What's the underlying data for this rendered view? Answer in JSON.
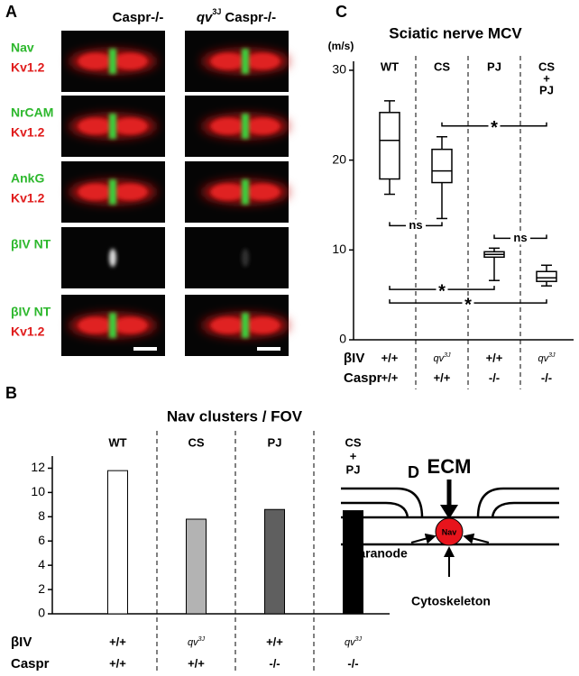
{
  "panel_labels": [
    "A",
    "B",
    "C",
    "D"
  ],
  "panel_a": {
    "columns": [
      {
        "text": "Caspr-/-"
      },
      {
        "italic": "qv",
        "sup": "3J",
        "text": "Caspr-/-"
      }
    ],
    "rows": [
      {
        "green": "Nav",
        "red": "Kv1.2"
      },
      {
        "green": "NrCAM",
        "red": "Kv1.2"
      },
      {
        "green": "AnkG",
        "red": "Kv1.2"
      },
      {
        "green": "βIV NT",
        "red": null
      },
      {
        "green": "βIV NT",
        "red": "Kv1.2"
      }
    ]
  },
  "chart_data": [
    {
      "type": "bar",
      "title": "Nav clusters / FOV",
      "categories": [
        [
          "WT"
        ],
        [
          "CS"
        ],
        [
          "PJ"
        ],
        [
          "CS",
          "+",
          "PJ"
        ]
      ],
      "values": [
        11.8,
        7.8,
        8.6,
        8.5
      ],
      "colors": [
        "#ffffff",
        "#b3b3b3",
        "#5f5f5f",
        "#000000"
      ],
      "ylim": [
        0,
        13
      ],
      "yticks": [
        0,
        2,
        4,
        6,
        8,
        10,
        12
      ],
      "genotype_rows": [
        {
          "label": "βIV",
          "values": [
            "+/+",
            "qv",
            "+/+",
            "qv"
          ],
          "superscripts": [
            null,
            "3J",
            null,
            "3J"
          ]
        },
        {
          "label": "Caspr",
          "values": [
            "+/+",
            "+/+",
            "-/-",
            "-/-"
          ],
          "superscripts": [
            null,
            null,
            null,
            null
          ]
        }
      ]
    },
    {
      "type": "box",
      "title": "Sciatic nerve MCV",
      "ylabel": "(m/s)",
      "categories": [
        [
          "WT"
        ],
        [
          "CS"
        ],
        [
          "PJ"
        ],
        [
          "CS",
          "+",
          "PJ"
        ]
      ],
      "min": [
        16.2,
        13.5,
        6.6,
        6.0
      ],
      "q1": [
        17.9,
        17.5,
        9.2,
        6.5
      ],
      "median": [
        22.2,
        18.8,
        9.5,
        6.9
      ],
      "q3": [
        25.3,
        21.2,
        9.8,
        7.6
      ],
      "max": [
        26.6,
        22.6,
        10.2,
        8.3
      ],
      "ylim": [
        0,
        31
      ],
      "yticks": [
        0,
        10,
        20,
        30
      ],
      "comparisons": [
        {
          "from": 1,
          "to": 3,
          "y": 23.8,
          "label": "*"
        },
        {
          "from": 0,
          "to": 1,
          "y": 12.7,
          "label": "ns"
        },
        {
          "from": 2,
          "to": 3,
          "y": 11.3,
          "label": "ns"
        },
        {
          "from": 0,
          "to": 2,
          "y": 5.6,
          "label": "*"
        },
        {
          "from": 0,
          "to": 3,
          "y": 4.1,
          "label": "*"
        }
      ],
      "genotype_rows": [
        {
          "label": "βIV",
          "values": [
            "+/+",
            "qv",
            "+/+",
            "qv"
          ],
          "superscripts": [
            null,
            "3J",
            null,
            "3J"
          ]
        },
        {
          "label": "Caspr",
          "values": [
            "+/+",
            "+/+",
            "-/-",
            "-/-"
          ],
          "superscripts": [
            null,
            null,
            null,
            null
          ]
        }
      ]
    }
  ],
  "diagram": {
    "top": "ECM",
    "center": "Nav",
    "left": "Paranode",
    "bottom": "Cytoskeleton"
  }
}
